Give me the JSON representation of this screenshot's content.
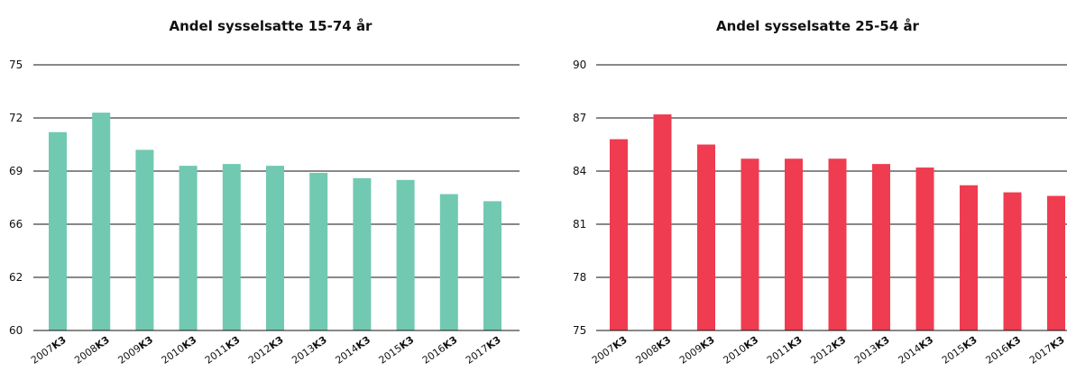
{
  "chart_data": [
    {
      "type": "bar",
      "title": "Andel sysselsatte 15-74 år",
      "categories": [
        "2007",
        "2008",
        "2009",
        "2010",
        "2011",
        "2012",
        "2013",
        "2014",
        "2015",
        "2016",
        "2017"
      ],
      "category_suffix": "K3",
      "values": [
        71.2,
        72.3,
        70.2,
        69.3,
        69.4,
        69.3,
        68.9,
        68.6,
        68.5,
        67.7,
        67.3
      ],
      "yticks": [
        "75",
        "72",
        "69",
        "66",
        "62",
        "60"
      ],
      "ylim": [
        60,
        75
      ],
      "grid": true,
      "color": "#71c9b1"
    },
    {
      "type": "bar",
      "title": "Andel sysselsatte 25-54 år",
      "categories": [
        "2007",
        "2008",
        "2009",
        "2010",
        "2011",
        "2012",
        "2013",
        "2014",
        "2015",
        "2016",
        "2017"
      ],
      "category_suffix": "K3",
      "values": [
        85.8,
        87.2,
        85.5,
        84.7,
        84.7,
        84.7,
        84.4,
        84.2,
        83.2,
        82.8,
        82.6
      ],
      "yticks": [
        "90",
        "87",
        "84",
        "81",
        "78",
        "75"
      ],
      "ylim": [
        75,
        90
      ],
      "grid": true,
      "color": "#ef3c50"
    }
  ]
}
